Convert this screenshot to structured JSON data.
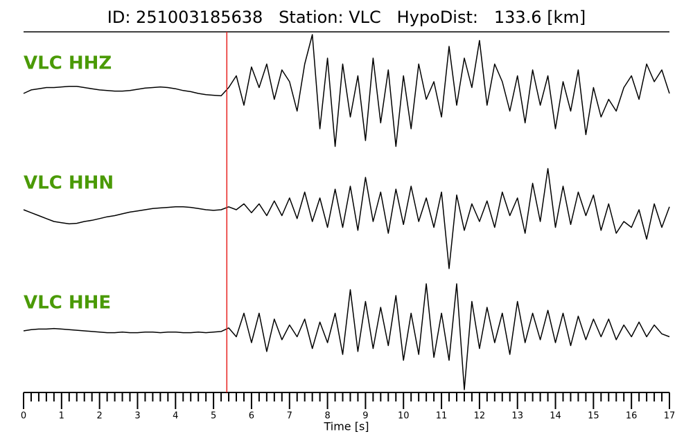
{
  "chart_data": {
    "type": "line",
    "title": "ID: 251003185638   Station: VLC   HypoDist:   133.6 [km]",
    "xlabel": "Time [s]",
    "xlim": [
      0,
      17
    ],
    "xticks": [
      0,
      1,
      2,
      3,
      4,
      5,
      6,
      7,
      8,
      9,
      10,
      11,
      12,
      13,
      14,
      15,
      16,
      17
    ],
    "xminorticks": [
      0.2,
      0.4,
      0.6,
      0.8,
      1.2,
      1.4,
      1.6,
      1.8,
      2.2,
      2.4,
      2.6,
      2.8,
      3.2,
      3.4,
      3.6,
      3.8,
      4.2,
      4.4,
      4.6,
      4.8,
      5.2,
      5.4,
      5.6,
      5.8,
      6.2,
      6.4,
      6.6,
      6.8,
      7.2,
      7.4,
      7.6,
      7.8,
      8.2,
      8.4,
      8.6,
      8.8,
      9.2,
      9.4,
      9.6,
      9.8,
      10.2,
      10.4,
      10.6,
      10.8,
      11.2,
      11.4,
      11.6,
      11.8,
      12.2,
      12.4,
      12.6,
      12.8,
      13.2,
      13.4,
      13.6,
      13.8,
      14.2,
      14.4,
      14.6,
      14.8,
      15.2,
      15.4,
      15.6,
      15.8,
      16.2,
      16.4,
      16.6,
      16.8
    ],
    "ylim": [
      -1,
      1
    ],
    "pick": {
      "x": 5.35,
      "color": "#e8221e"
    },
    "x": [
      0,
      0.2,
      0.4,
      0.6,
      0.8,
      1,
      1.2,
      1.4,
      1.6,
      1.8,
      2,
      2.2,
      2.4,
      2.6,
      2.8,
      3,
      3.2,
      3.4,
      3.6,
      3.8,
      4,
      4.2,
      4.4,
      4.6,
      4.8,
      5,
      5.2,
      5.4,
      5.6,
      5.8,
      6,
      6.2,
      6.4,
      6.6,
      6.8,
      7,
      7.2,
      7.4,
      7.6,
      7.8,
      8,
      8.2,
      8.4,
      8.6,
      8.8,
      9,
      9.2,
      9.4,
      9.6,
      9.8,
      10,
      10.2,
      10.4,
      10.6,
      10.8,
      11,
      11.2,
      11.4,
      11.6,
      11.8,
      12,
      12.2,
      12.4,
      12.6,
      12.8,
      13,
      13.2,
      13.4,
      13.6,
      13.8,
      14,
      14.2,
      14.4,
      14.6,
      14.8,
      15,
      15.2,
      15.4,
      15.6,
      15.8,
      16,
      16.2,
      16.4,
      16.6,
      16.8,
      17
    ],
    "series": [
      {
        "name": "VLC HHZ",
        "color": "#000000",
        "label_color": "#4a9a06",
        "values": [
          0.0,
          0.06,
          0.08,
          0.1,
          0.1,
          0.11,
          0.12,
          0.12,
          0.1,
          0.08,
          0.06,
          0.05,
          0.04,
          0.04,
          0.05,
          0.07,
          0.09,
          0.1,
          0.11,
          0.1,
          0.08,
          0.05,
          0.03,
          0.0,
          -0.02,
          -0.03,
          -0.04,
          0.1,
          0.3,
          -0.2,
          0.45,
          0.1,
          0.5,
          -0.1,
          0.4,
          0.2,
          -0.3,
          0.5,
          1.0,
          -0.6,
          0.6,
          -0.9,
          0.5,
          -0.4,
          0.3,
          -0.8,
          0.6,
          -0.5,
          0.4,
          -0.9,
          0.3,
          -0.6,
          0.5,
          -0.1,
          0.2,
          -0.4,
          0.8,
          -0.2,
          0.6,
          0.1,
          0.9,
          -0.2,
          0.5,
          0.2,
          -0.3,
          0.3,
          -0.5,
          0.4,
          -0.2,
          0.3,
          -0.6,
          0.2,
          -0.3,
          0.4,
          -0.7,
          0.1,
          -0.4,
          -0.1,
          -0.3,
          0.1,
          0.3,
          -0.1,
          0.5,
          0.2,
          0.4,
          0.0
        ]
      },
      {
        "name": "VLC HHN",
        "color": "#000000",
        "label_color": "#4a9a06",
        "values": [
          0.0,
          -0.05,
          -0.1,
          -0.15,
          -0.2,
          -0.22,
          -0.24,
          -0.23,
          -0.2,
          -0.18,
          -0.15,
          -0.12,
          -0.1,
          -0.07,
          -0.04,
          -0.02,
          0.0,
          0.02,
          0.03,
          0.04,
          0.05,
          0.05,
          0.04,
          0.02,
          0.0,
          -0.01,
          0.0,
          0.05,
          0.0,
          0.1,
          -0.05,
          0.1,
          -0.1,
          0.15,
          -0.1,
          0.2,
          -0.15,
          0.3,
          -0.2,
          0.2,
          -0.3,
          0.35,
          -0.3,
          0.4,
          -0.35,
          0.55,
          -0.2,
          0.3,
          -0.4,
          0.35,
          -0.25,
          0.4,
          -0.2,
          0.2,
          -0.3,
          0.3,
          -1.0,
          0.25,
          -0.35,
          0.1,
          -0.2,
          0.15,
          -0.3,
          0.3,
          -0.1,
          0.2,
          -0.4,
          0.45,
          -0.2,
          0.7,
          -0.3,
          0.4,
          -0.25,
          0.3,
          -0.1,
          0.25,
          -0.35,
          0.1,
          -0.4,
          -0.2,
          -0.3,
          0.0,
          -0.5,
          0.1,
          -0.3,
          0.05
        ]
      },
      {
        "name": "VLC HHE",
        "color": "#000000",
        "label_color": "#4a9a06",
        "values": [
          0.0,
          0.02,
          0.03,
          0.03,
          0.04,
          0.03,
          0.02,
          0.01,
          0.0,
          -0.01,
          -0.02,
          -0.03,
          -0.03,
          -0.02,
          -0.03,
          -0.03,
          -0.02,
          -0.02,
          -0.03,
          -0.02,
          -0.02,
          -0.03,
          -0.03,
          -0.02,
          -0.03,
          -0.02,
          -0.01,
          0.05,
          -0.1,
          0.3,
          -0.2,
          0.3,
          -0.35,
          0.2,
          -0.15,
          0.1,
          -0.1,
          0.2,
          -0.3,
          0.15,
          -0.2,
          0.3,
          -0.4,
          0.7,
          -0.35,
          0.5,
          -0.3,
          0.4,
          -0.25,
          0.6,
          -0.5,
          0.3,
          -0.4,
          0.8,
          -0.45,
          0.3,
          -0.5,
          0.8,
          -1.0,
          0.5,
          -0.3,
          0.4,
          -0.2,
          0.3,
          -0.4,
          0.5,
          -0.2,
          0.3,
          -0.15,
          0.35,
          -0.2,
          0.3,
          -0.25,
          0.25,
          -0.15,
          0.2,
          -0.1,
          0.2,
          -0.15,
          0.1,
          -0.1,
          0.15,
          -0.1,
          0.1,
          -0.05,
          -0.1
        ]
      }
    ]
  }
}
